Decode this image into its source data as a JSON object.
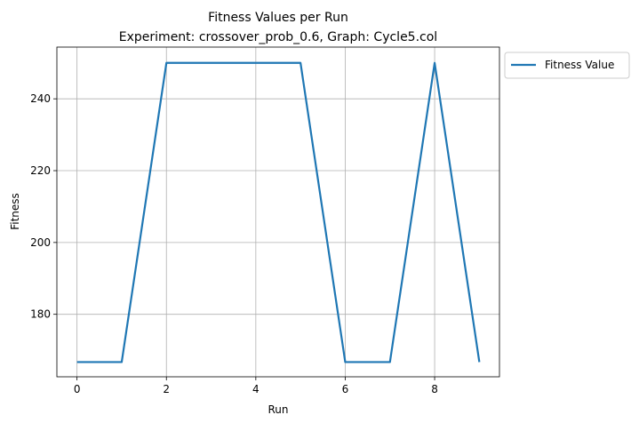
{
  "chart_data": {
    "type": "line",
    "title": "Fitness Values per Run",
    "subtitle": "Experiment: crossover_prob_0.6, Graph: Cycle5.col",
    "xlabel": "Run",
    "ylabel": "Fitness",
    "xlim": [
      -0.45,
      9.45
    ],
    "ylim": [
      162.6,
      254.4
    ],
    "xticks": [
      0,
      2,
      4,
      6,
      8
    ],
    "yticks": [
      180,
      200,
      220,
      240
    ],
    "grid": true,
    "legend_position": "outside-top-right",
    "series": [
      {
        "name": "Fitness Value",
        "color": "#1f77b4",
        "x": [
          0,
          1,
          2,
          3,
          4,
          5,
          6,
          7,
          8,
          9
        ],
        "y": [
          166.7,
          166.7,
          250,
          250,
          250,
          250,
          166.7,
          166.7,
          250,
          166.7
        ]
      }
    ]
  }
}
